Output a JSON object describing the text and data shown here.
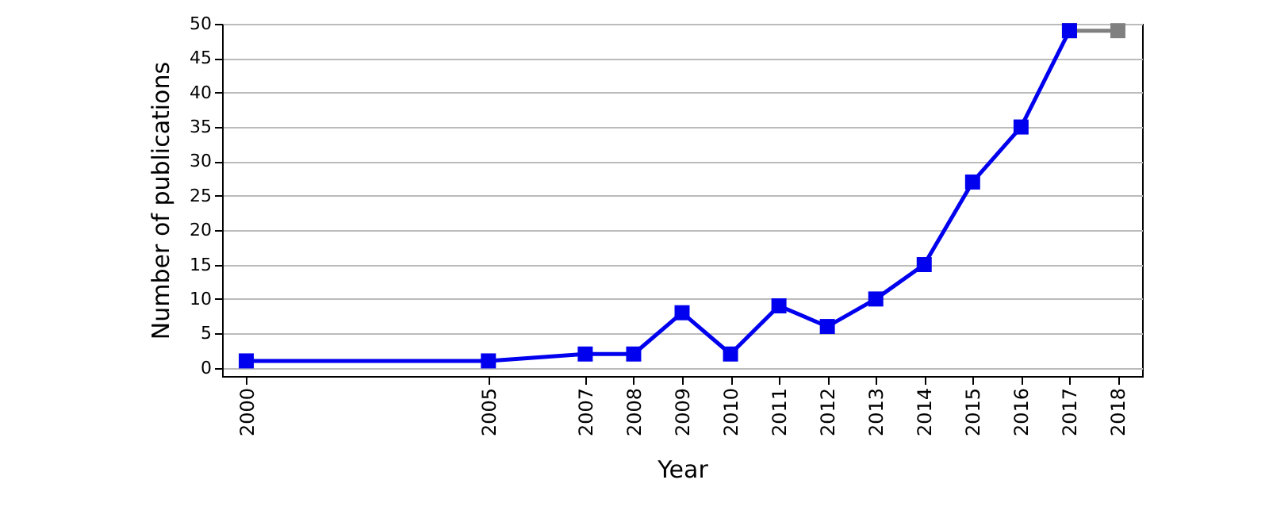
{
  "chart_data": {
    "type": "line",
    "xlabel": "Year",
    "ylabel": "Number of publications",
    "xlim": [
      1999.5,
      2018.5
    ],
    "ylim": [
      -1.2,
      50
    ],
    "xticks": [
      2000,
      2005,
      2007,
      2008,
      2009,
      2010,
      2011,
      2012,
      2013,
      2014,
      2015,
      2016,
      2017,
      2018
    ],
    "yticks": [
      0,
      5,
      10,
      15,
      20,
      25,
      30,
      35,
      40,
      45,
      50
    ],
    "grid": "y",
    "marker": "square",
    "line_style": "solid",
    "series": [
      {
        "color": "#808080",
        "x": [
          2017,
          2018
        ],
        "values": [
          49,
          49
        ]
      },
      {
        "color": "#0000ee",
        "x": [
          2000,
          2005,
          2007,
          2008,
          2009,
          2010,
          2011,
          2012,
          2013,
          2014,
          2015,
          2016,
          2017
        ],
        "values": [
          1,
          1,
          2,
          2,
          8,
          2,
          9,
          6,
          10,
          15,
          27,
          35,
          49
        ]
      }
    ]
  }
}
